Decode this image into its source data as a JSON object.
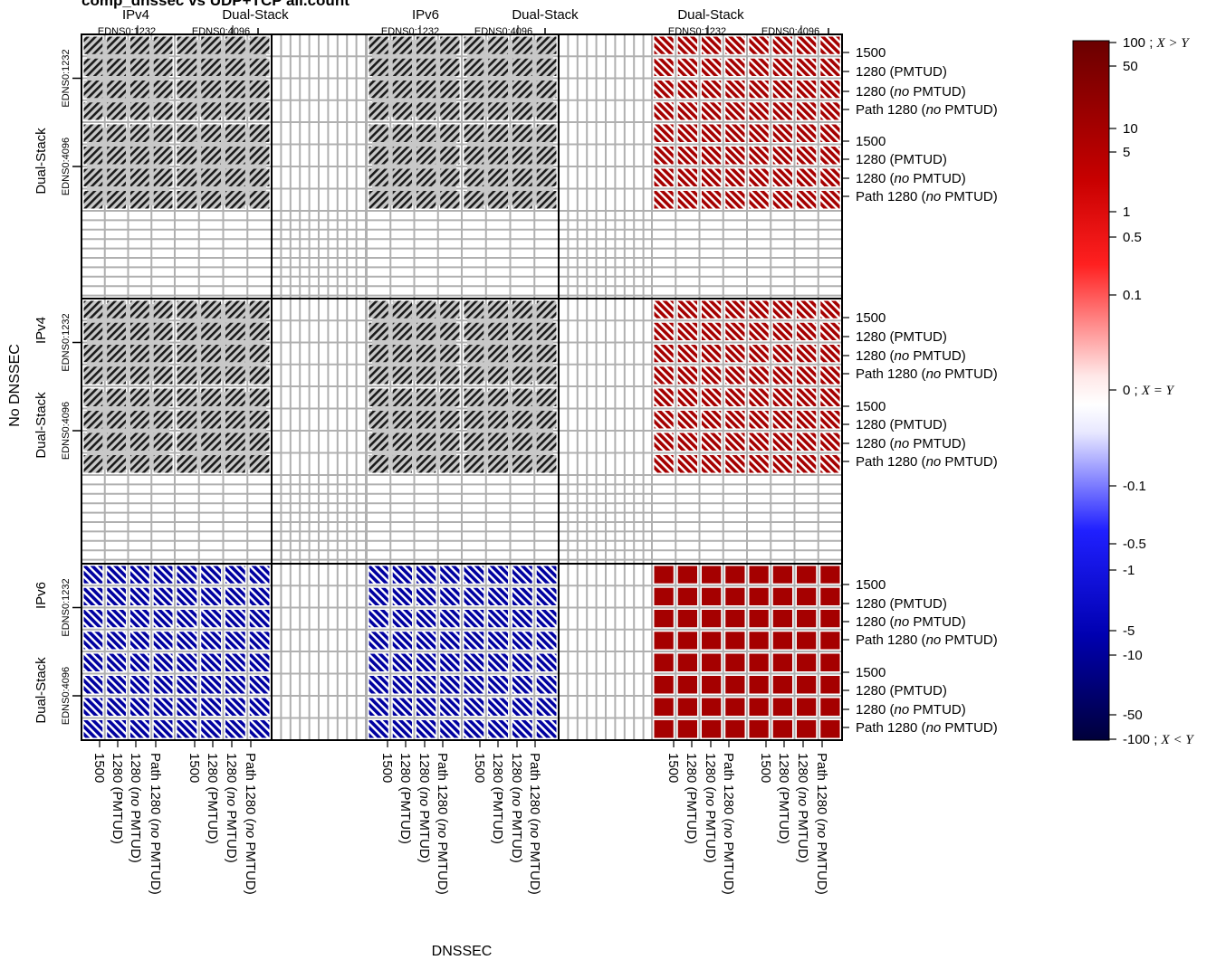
{
  "chart_data": {
    "type": "heatmap",
    "title": "comp_dnssec vs UDP+TCP all.count",
    "xlabel": "DNSSEC",
    "ylabel": "No DNSSEC",
    "outer_columns": [
      {
        "top": "IPv4",
        "sub": "Dual-Stack",
        "edns": [
          "EDNS0:1232",
          "EDNS0:4096"
        ]
      },
      {
        "top": "IPv6",
        "sub": "Dual-Stack",
        "edns": [
          "EDNS0:1232",
          "EDNS0:4096"
        ]
      },
      {
        "top": "",
        "sub": "Dual-Stack",
        "edns": [
          "EDNS0:1232",
          "EDNS0:4096"
        ]
      }
    ],
    "outer_rows": [
      {
        "side": "Dual-Stack",
        "top": "",
        "edns": [
          "EDNS0:1232",
          "EDNS0:4096"
        ]
      },
      {
        "side": "Dual-Stack",
        "top": "IPv4",
        "edns": [
          "EDNS0:1232",
          "EDNS0:4096"
        ]
      },
      {
        "side": "Dual-Stack",
        "top": "IPv6",
        "edns": [
          "EDNS0:1232",
          "EDNS0:4096"
        ]
      }
    ],
    "mtu_labels": [
      "1500",
      "1280 (PMTUD)",
      "1280 (no PMTUD)",
      "Path 1280 (no PMTUD)"
    ],
    "block_states": [
      [
        "na",
        "na",
        "na",
        "na",
        "pos_hatch",
        "pos_hatch"
      ],
      [
        "na",
        "na",
        "na",
        "na",
        "pos_hatch",
        "pos_hatch"
      ],
      [
        "na",
        "na",
        "na",
        "na",
        "pos_hatch",
        "pos_hatch"
      ],
      [
        "na",
        "na",
        "na",
        "na",
        "pos_hatch",
        "pos_hatch"
      ],
      [
        "neg_hatch",
        "neg_hatch",
        "neg_hatch",
        "neg_hatch",
        "pos_solid",
        "pos_solid"
      ],
      [
        "neg_hatch",
        "neg_hatch",
        "neg_hatch",
        "neg_hatch",
        "pos_solid",
        "pos_solid"
      ]
    ],
    "colors": {
      "positive": "#a50000",
      "negative": "#0000a0",
      "na": "#c8c8c8",
      "hatch": "#1a1a1a",
      "grid": "#b0b0b0",
      "frame": "#000000"
    },
    "colorbar": {
      "labels": [
        {
          "v": "100",
          "t": "100 ; X > Y"
        },
        {
          "v": "50",
          "t": "50"
        },
        {
          "v": "10",
          "t": "10"
        },
        {
          "v": "5",
          "t": "5"
        },
        {
          "v": "1",
          "t": "1"
        },
        {
          "v": "0.5",
          "t": "0.5"
        },
        {
          "v": "0.1",
          "t": "0.1"
        },
        {
          "v": "0",
          "t": "0 ; X = Y"
        },
        {
          "v": "-0.1",
          "t": "-0.1"
        },
        {
          "v": "-0.5",
          "t": "-0.5"
        },
        {
          "v": "-1",
          "t": "-1"
        },
        {
          "v": "-5",
          "t": "-5"
        },
        {
          "v": "-10",
          "t": "-10"
        },
        {
          "v": "-50",
          "t": "-50"
        },
        {
          "v": "-100",
          "t": "-100 ; X < Y"
        }
      ]
    }
  }
}
